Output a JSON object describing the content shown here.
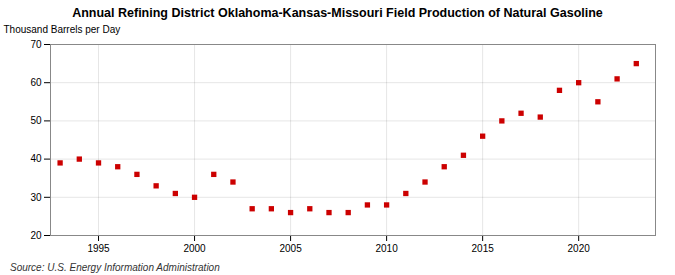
{
  "chart_data": {
    "type": "scatter",
    "title": "Annual Refining District Oklahoma-Kansas-Missouri Field Production of Natural Gasoline",
    "ylabel": "Thousand Barrels per Day",
    "source": "Source: U.S. Energy Information Administration",
    "x": [
      1993,
      1994,
      1995,
      1996,
      1997,
      1998,
      1999,
      2000,
      2001,
      2002,
      2003,
      2004,
      2005,
      2006,
      2007,
      2008,
      2009,
      2010,
      2011,
      2012,
      2013,
      2014,
      2015,
      2016,
      2017,
      2018,
      2019,
      2020,
      2021,
      2022,
      2023
    ],
    "values": [
      39,
      40,
      39,
      38,
      36,
      33,
      31,
      30,
      36,
      34,
      27,
      27,
      26,
      27,
      26,
      26,
      28,
      28,
      31,
      34,
      38,
      41,
      46,
      50,
      52,
      51,
      58,
      60,
      55,
      61,
      65
    ],
    "color": "#cc0000",
    "marker": "square",
    "xlim": [
      1992.5,
      2024
    ],
    "xticks": [
      1995,
      2000,
      2005,
      2010,
      2015,
      2020
    ],
    "ylim": [
      20,
      70
    ],
    "yticks": [
      20,
      30,
      40,
      50,
      60,
      70
    ],
    "grid": true
  }
}
